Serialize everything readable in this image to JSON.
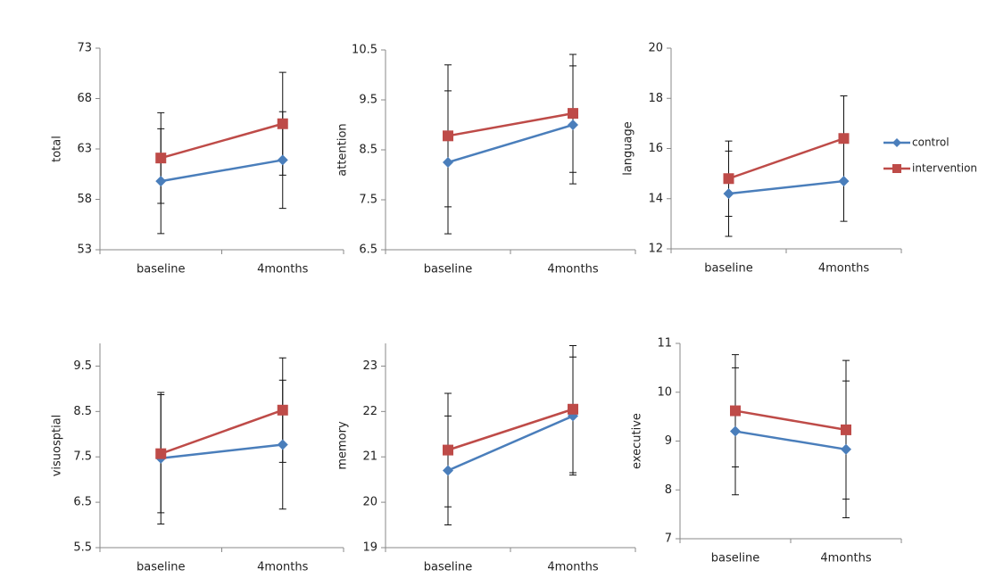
{
  "chart_data": [
    {
      "type": "line",
      "ylabel": "total",
      "categories": [
        "baseline",
        "4months"
      ],
      "ylim": [
        53,
        73
      ],
      "yticks": [
        53,
        58,
        63,
        68,
        73
      ],
      "series": [
        {
          "color": "#4a7ebb",
          "marker": "diamond",
          "values": [
            59.8,
            61.9
          ],
          "errors": [
            5.2,
            4.8
          ]
        },
        {
          "color": "#be4b48",
          "marker": "square",
          "values": [
            62.1,
            65.5
          ],
          "errors": [
            4.5,
            5.1
          ]
        }
      ]
    },
    {
      "type": "line",
      "ylabel": "attention",
      "categories": [
        "baseline",
        "4months"
      ],
      "ylim": [
        6.5,
        10.5
      ],
      "yticks": [
        6.5,
        7.5,
        8.5,
        9.5,
        10.5
      ],
      "series": [
        {
          "color": "#4a7ebb",
          "marker": "diamond",
          "values": [
            8.25,
            9.0
          ],
          "errors": [
            1.43,
            1.18
          ]
        },
        {
          "color": "#be4b48",
          "marker": "square",
          "values": [
            8.78,
            9.23
          ],
          "errors": [
            1.42,
            1.18
          ]
        }
      ]
    },
    {
      "type": "line",
      "ylabel": "language",
      "categories": [
        "baseline",
        "4months"
      ],
      "ylim": [
        12,
        20
      ],
      "yticks": [
        12,
        14,
        16,
        18,
        20
      ],
      "legend": "right",
      "series": [
        {
          "name": "control",
          "color": "#4a7ebb",
          "marker": "diamond",
          "values": [
            14.2,
            14.7
          ],
          "errors": [
            1.7,
            1.6
          ]
        },
        {
          "name": "intervention",
          "color": "#be4b48",
          "marker": "square",
          "values": [
            14.8,
            16.4
          ],
          "errors": [
            1.5,
            1.7
          ]
        }
      ]
    },
    {
      "type": "line",
      "ylabel": "visuosptial",
      "categories": [
        "baseline",
        "4months"
      ],
      "ylim": [
        5.5,
        10
      ],
      "yticks": [
        5.5,
        6.5,
        7.5,
        8.5,
        9.5
      ],
      "series": [
        {
          "color": "#4a7ebb",
          "marker": "diamond",
          "values": [
            7.47,
            7.77
          ],
          "errors": [
            1.45,
            1.42
          ]
        },
        {
          "color": "#be4b48",
          "marker": "square",
          "values": [
            7.57,
            8.53
          ],
          "errors": [
            1.3,
            1.15
          ]
        }
      ]
    },
    {
      "type": "line",
      "ylabel": "memory",
      "categories": [
        "baseline",
        "4months"
      ],
      "ylim": [
        19,
        23.5
      ],
      "yticks": [
        19,
        20,
        21,
        22,
        23
      ],
      "series": [
        {
          "color": "#4a7ebb",
          "marker": "diamond",
          "values": [
            20.7,
            21.9
          ],
          "errors": [
            1.2,
            1.3
          ]
        },
        {
          "color": "#be4b48",
          "marker": "square",
          "values": [
            21.15,
            22.05
          ],
          "errors": [
            1.25,
            1.4
          ]
        }
      ]
    },
    {
      "type": "line",
      "ylabel": "executive",
      "categories": [
        "baseline",
        "4months"
      ],
      "ylim": [
        7,
        11
      ],
      "yticks": [
        7,
        8,
        9,
        10,
        11
      ],
      "series": [
        {
          "color": "#4a7ebb",
          "marker": "diamond",
          "values": [
            9.2,
            8.83
          ],
          "errors": [
            1.3,
            1.4
          ]
        },
        {
          "color": "#be4b48",
          "marker": "square",
          "values": [
            9.62,
            9.23
          ],
          "errors": [
            1.15,
            1.42
          ]
        }
      ]
    }
  ]
}
